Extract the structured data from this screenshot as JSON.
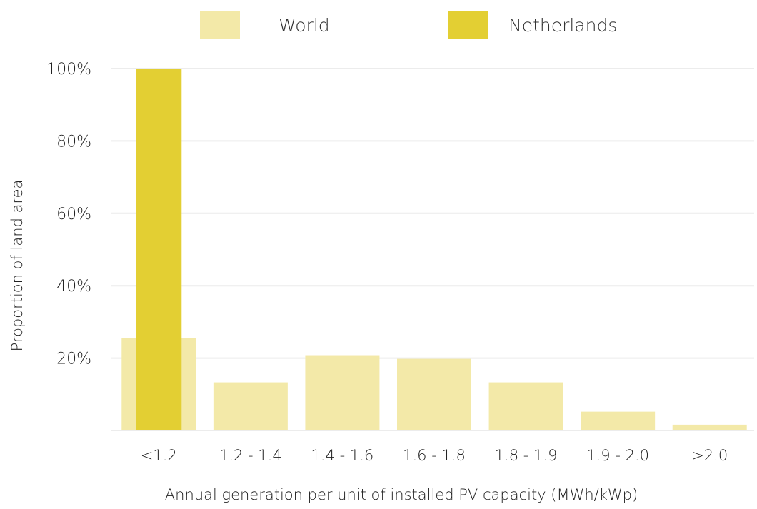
{
  "chart_data": {
    "type": "bar",
    "categories": [
      "<1.2",
      "1.2 - 1.4",
      "1.4 - 1.6",
      "1.6 - 1.8",
      "1.8 - 1.9",
      "1.9 - 2.0",
      ">2.0"
    ],
    "series": [
      {
        "name": "World",
        "values": [
          25.5,
          13.3,
          20.8,
          19.8,
          13.3,
          5.2,
          1.6
        ],
        "color": "#f3e9a8"
      },
      {
        "name": "Netherlands",
        "values": [
          100,
          null,
          null,
          null,
          null,
          null,
          null
        ],
        "color": "#e3cf33"
      }
    ],
    "title": "",
    "xlabel": "Annual generation per unit of installed PV capacity (MWh/kWp)",
    "ylabel": "Proportion of land area",
    "ylim": [
      0,
      100
    ],
    "yticks": [
      20,
      40,
      60,
      80,
      100
    ],
    "ytick_labels": [
      "20%",
      "40%",
      "60%",
      "80%",
      "100%"
    ],
    "grid": true,
    "legend_position": "top",
    "gridline_color": "#ececec"
  }
}
